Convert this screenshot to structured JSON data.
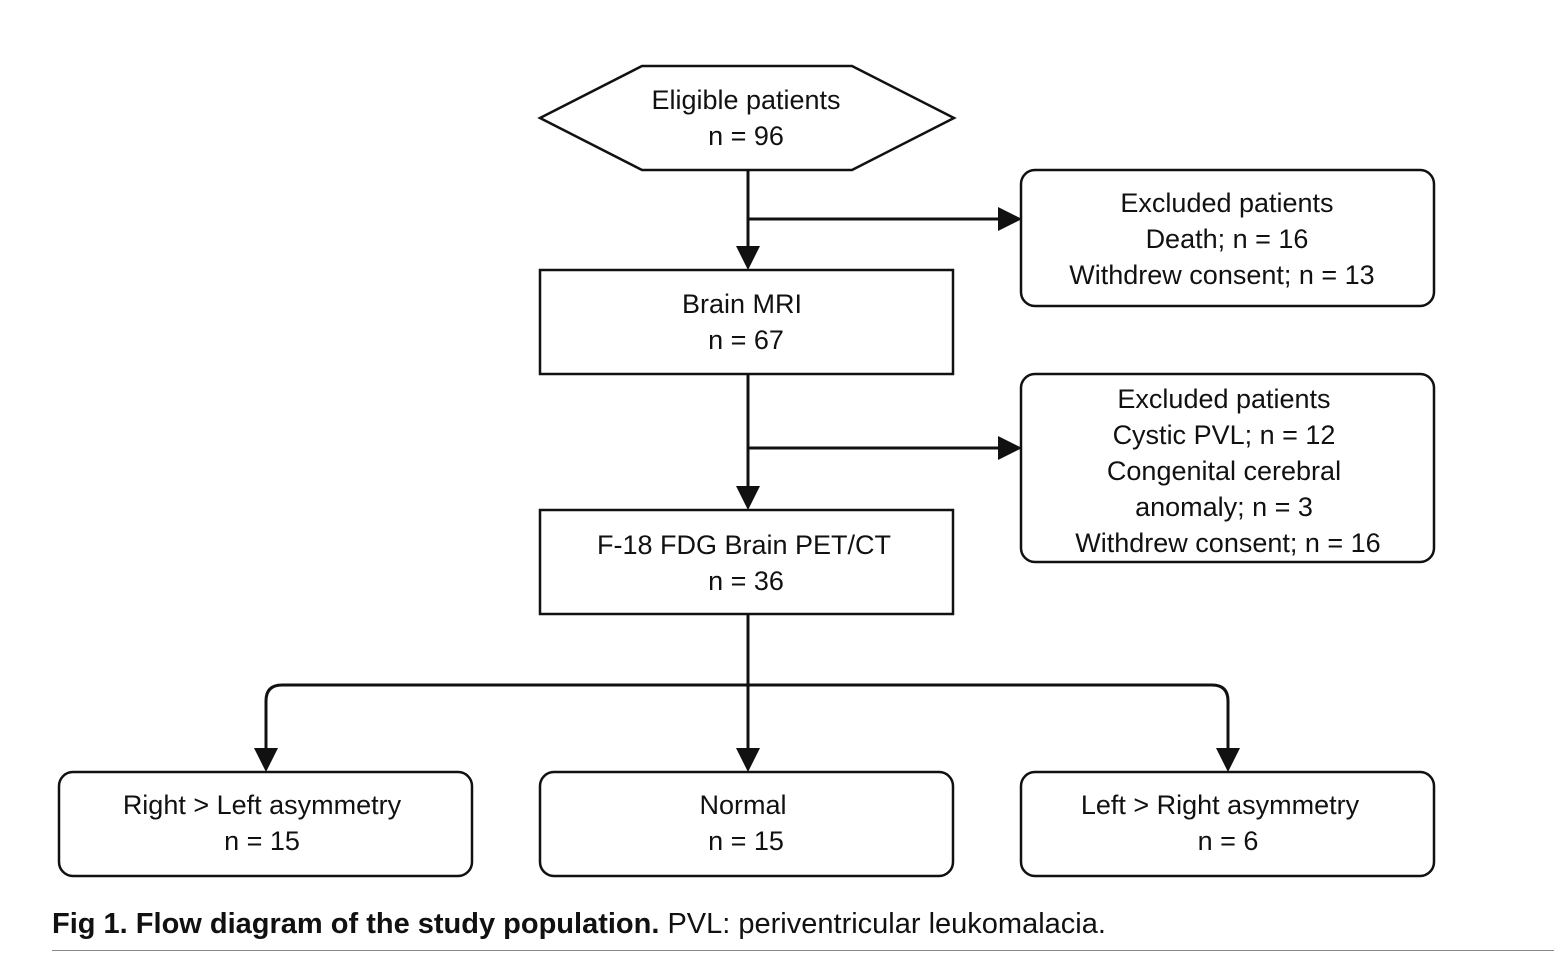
{
  "nodes": {
    "eligible": {
      "lines": [
        "Eligible patients",
        "n = 96"
      ]
    },
    "excluded_1": {
      "lines": [
        "Excluded patients",
        "Death; n = 16",
        "Withdrew consent; n = 13"
      ]
    },
    "brain_mri": {
      "lines": [
        "Brain MRI",
        "n = 67"
      ]
    },
    "excluded_2": {
      "lines": [
        "Excluded patients",
        "Cystic PVL; n = 12",
        "Congenital cerebral",
        "anomaly; n = 3",
        "Withdrew consent; n = 16"
      ]
    },
    "pet_ct": {
      "lines": [
        "F-18 FDG Brain PET/CT",
        "n = 36"
      ]
    },
    "right_gt_left": {
      "lines": [
        "Right > Left asymmetry",
        "n = 15"
      ]
    },
    "normal": {
      "lines": [
        "Normal",
        "n = 15"
      ]
    },
    "left_gt_right": {
      "lines": [
        "Left > Right asymmetry",
        "n = 6"
      ]
    }
  },
  "caption": {
    "label": "Fig 1.",
    "title": "Flow diagram of the study population.",
    "text": "PVL: periventricular leukomalacia."
  }
}
